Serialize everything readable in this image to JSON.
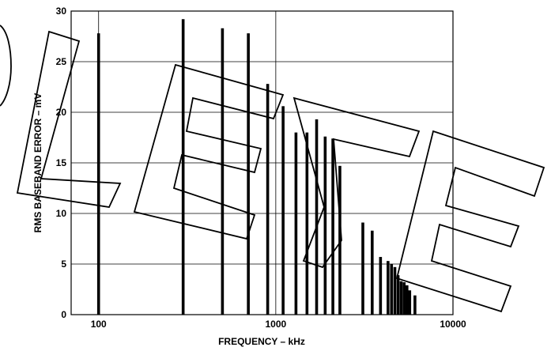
{
  "chart_data": {
    "type": "bar",
    "xscale": "log",
    "xlim": [
      70,
      10000
    ],
    "ylim": [
      0,
      30
    ],
    "xlabel": "FREQUENCY – kHz",
    "ylabel": "RMS BASEBAND ERROR – mV",
    "xticks": [
      "100",
      "1000",
      "10000"
    ],
    "yticks": [
      "0",
      "5",
      "10",
      "15",
      "20",
      "25",
      "30"
    ],
    "grid": true,
    "watermark": "OBSOLETE",
    "series": [
      {
        "x": [
          100,
          300,
          500,
          700,
          900,
          1100,
          1300,
          1500,
          1700,
          1900,
          2100,
          2300,
          3100,
          3500,
          3900,
          4300,
          4500,
          4700,
          4900,
          5100,
          5300,
          5500,
          5700,
          6100
        ],
        "values": [
          27.8,
          29.2,
          28.3,
          27.8,
          22.8,
          20.6,
          18.0,
          18.0,
          19.3,
          17.6,
          17.4,
          14.7,
          9.1,
          8.3,
          5.7,
          5.3,
          5.0,
          4.7,
          3.9,
          3.3,
          3.2,
          2.9,
          2.4,
          1.9
        ]
      }
    ]
  }
}
